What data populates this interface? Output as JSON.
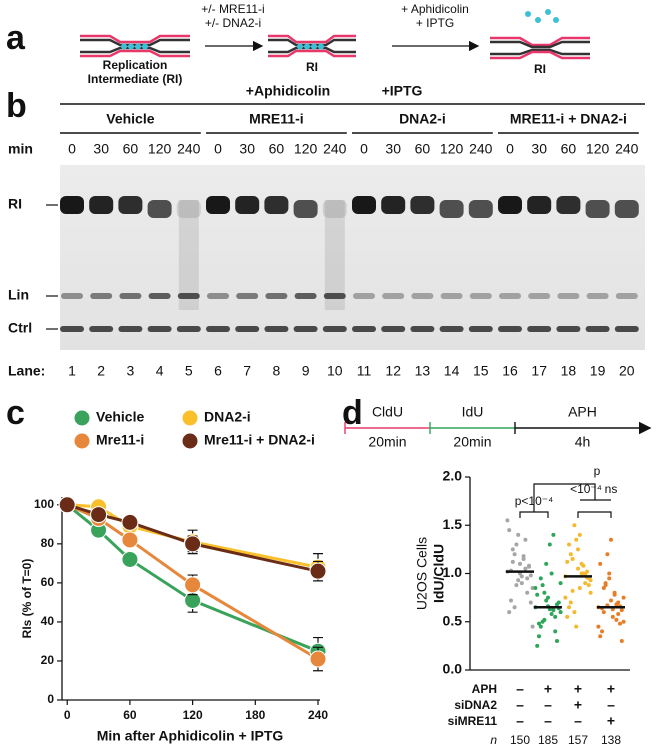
{
  "scheme": {
    "label": "a",
    "start": [
      "Replication",
      "Intermediate (RI)"
    ],
    "step1": [
      "+/- MRE11-i",
      "+/- DNA2-i"
    ],
    "middle": "RI",
    "step2": [
      "+ Aphidicolin",
      "+ IPTG"
    ],
    "end": "RI"
  },
  "gel": {
    "label": "b",
    "header": [
      "+Aphidicolin",
      "+IPTG"
    ],
    "groups": [
      "Vehicle",
      "MRE11-i",
      "DNA2-i",
      "MRE11-i + DNA2-i"
    ],
    "time_label": "min",
    "times": [
      0,
      30,
      60,
      120,
      240
    ],
    "bands": [
      "RI",
      "Lin",
      "Ctrl"
    ],
    "lane_label": "Lane:",
    "lanes": [
      1,
      2,
      3,
      4,
      5,
      6,
      7,
      8,
      9,
      10,
      11,
      12,
      13,
      14,
      15,
      16,
      17,
      18,
      19,
      20
    ]
  },
  "chart_data": [
    {
      "type": "line",
      "label": "c",
      "xlabel": "Min after Aphidicolin + IPTG",
      "ylabel": "RIs (% of T=0)",
      "x": [
        0,
        30,
        60,
        120,
        240
      ],
      "xlim": [
        -5,
        240
      ],
      "xticks": [
        0,
        60,
        120,
        180,
        240
      ],
      "ylim": [
        0,
        104
      ],
      "yticks": [
        0,
        20,
        40,
        60,
        80,
        100
      ],
      "series": [
        {
          "name": "Vehicle",
          "color": "#3aa35b",
          "values": [
            100,
            87,
            72,
            51,
            25
          ],
          "errors": [
            0,
            3,
            3,
            6,
            7
          ]
        },
        {
          "name": "DNA2-i",
          "color": "#f9c02b",
          "values": [
            100,
            99,
            89,
            81,
            68
          ],
          "errors": [
            0,
            2,
            3,
            6,
            7
          ]
        },
        {
          "name": "Mre11-i",
          "color": "#e7873b",
          "values": [
            100,
            93,
            82,
            59,
            21
          ],
          "errors": [
            0,
            2,
            3,
            5,
            6
          ]
        },
        {
          "name": "Mre11-i + DNA2-i",
          "color": "#6a2c17",
          "values": [
            100,
            95,
            91,
            80,
            66
          ],
          "errors": [
            0,
            2,
            2,
            4,
            5
          ]
        }
      ]
    },
    {
      "type": "scatter",
      "label": "d",
      "ylabel": "IdU/CldU",
      "ylabel2": "U2OS Cells",
      "ylim": [
        0,
        2
      ],
      "yticks": [
        {
          "value": 0,
          "label": "0.0"
        },
        {
          "value": 0.5,
          "label": "0.5"
        },
        {
          "value": 1,
          "label": "1.0"
        },
        {
          "value": 1.5,
          "label": "1.5"
        },
        {
          "value": 2,
          "label": "2.0"
        }
      ],
      "protocol": [
        {
          "name": "CldU",
          "duration": "20min",
          "color": "#e8386b"
        },
        {
          "name": "IdU",
          "duration": "20min",
          "color": "#2fa55a"
        },
        {
          "name": "APH",
          "duration": "4h",
          "color": "#111111"
        }
      ],
      "series": [
        {
          "color": "#a6a6a6",
          "median": 1.02,
          "n": 150,
          "values": [
            1.02,
            0.95,
            1.1,
            1.25,
            0.85,
            1.05,
            1.4,
            0.72,
            0.98,
            1.15,
            1.3,
            0.6,
            1.08,
            0.9,
            1.2,
            1.55,
            0.8,
            1.0,
            1.12,
            0.45,
            1.35,
            0.93,
            1.03,
            0.7,
            1.18,
            0.88,
            1.45,
            1.07,
            0.97,
            0.65
          ]
        },
        {
          "color": "#2fa55a",
          "median": 0.65,
          "n": 185,
          "values": [
            0.65,
            0.55,
            0.75,
            0.45,
            0.9,
            0.62,
            1.1,
            0.35,
            0.7,
            0.58,
            0.8,
            0.25,
            0.68,
            1.3,
            0.5,
            0.85,
            0.4,
            0.66,
            0.95,
            0.6,
            1.4,
            0.72,
            0.48,
            0.64,
            1.0,
            0.52,
            0.78,
            0.3,
            0.63,
            0.88
          ]
        },
        {
          "color": "#f5b930",
          "median": 0.97,
          "n": 157,
          "values": [
            0.97,
            0.9,
            1.05,
            1.2,
            0.8,
            1.0,
            1.35,
            0.65,
            0.95,
            1.1,
            1.5,
            0.55,
            1.02,
            0.85,
            1.15,
            0.75,
            0.99,
            1.25,
            0.7,
            0.93,
            1.08,
            0.45,
            1.3,
            0.88,
            1.0,
            0.6,
            1.12,
            0.96,
            1.4,
            0.82
          ]
        },
        {
          "color": "#e57e27",
          "median": 0.65,
          "n": 138,
          "values": [
            0.65,
            0.58,
            0.72,
            0.85,
            0.5,
            0.68,
            1.0,
            0.4,
            0.62,
            0.78,
            1.2,
            0.35,
            0.66,
            0.55,
            0.9,
            0.45,
            0.7,
            1.35,
            0.6,
            0.75,
            0.52,
            0.95,
            0.64,
            0.3,
            0.8,
            0.67,
            1.1,
            0.48,
            0.63,
            0.88
          ]
        }
      ],
      "conditions": [
        {
          "name": "APH",
          "signs": [
            "–",
            "+",
            "+",
            "+"
          ]
        },
        {
          "name": "siDNA2",
          "signs": [
            "–",
            "–",
            "+",
            "–"
          ]
        },
        {
          "name": "siMRE11",
          "signs": [
            "–",
            "–",
            "–",
            "+"
          ]
        }
      ],
      "n_label": "n",
      "annotations": [
        "p<10⁻⁴",
        "<10⁻⁴",
        "ns",
        "p"
      ]
    }
  ]
}
